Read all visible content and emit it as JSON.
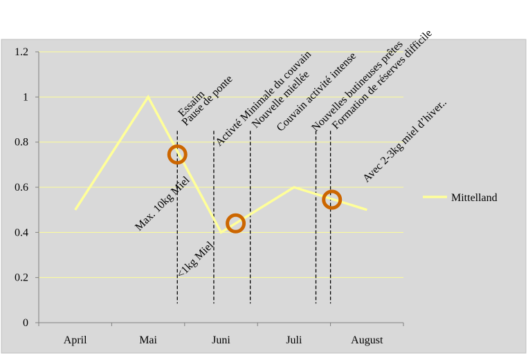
{
  "chart_data": {
    "type": "line",
    "categories": [
      "April",
      "Mai",
      "Juni",
      "Juli",
      "August"
    ],
    "series": [
      {
        "name": "Mittelland",
        "color": "#ffff99",
        "points": [
          {
            "x": 0.0,
            "y": 0.5
          },
          {
            "x": 1.0,
            "y": 1.0
          },
          {
            "x": 2.0,
            "y": 0.4
          },
          {
            "x": 3.0,
            "y": 0.6
          },
          {
            "x": 4.0,
            "y": 0.5
          }
        ]
      }
    ],
    "ylim": [
      0,
      1.2
    ],
    "yticks": [
      0,
      0.2,
      0.4,
      0.6,
      0.8,
      1,
      1.2
    ],
    "ytick_labels": [
      "0",
      "0.2",
      "0.4",
      "0.6",
      "0.8",
      "1",
      "1.2"
    ],
    "grid": true,
    "legend_position": "right",
    "colors": {
      "plot_background": "#d9d9d9",
      "gridline": "#ffff99",
      "marker": "#cc6600"
    },
    "event_lines": [
      {
        "x": 1.4,
        "y_top": 0.85
      },
      {
        "x": 1.9,
        "y_top": 0.85
      },
      {
        "x": 2.4,
        "y_top": 0.85
      },
      {
        "x": 3.3,
        "y_top": 0.85
      },
      {
        "x": 3.5,
        "y_top": 0.85
      }
    ],
    "markers": [
      {
        "x": 1.4,
        "y": 0.745
      },
      {
        "x": 2.2,
        "y": 0.44
      },
      {
        "x": 3.52,
        "y": 0.545
      }
    ],
    "annotations": [
      {
        "text": "Essaim",
        "x": 1.47,
        "y": 0.91
      },
      {
        "text": "Pause de ponte",
        "x": 1.52,
        "y": 0.87
      },
      {
        "text": "Activté Minimale du couvain",
        "x": 1.98,
        "y": 0.78
      },
      {
        "text": "Nouvelle miellée",
        "x": 2.48,
        "y": 0.86
      },
      {
        "text": "Couvain activité intense",
        "x": 2.82,
        "y": 0.845
      },
      {
        "text": "Nouvelles butineuses prêtes",
        "x": 3.3,
        "y": 0.845
      },
      {
        "text": "Formation de réserves difficile",
        "x": 3.58,
        "y": 0.855
      },
      {
        "text": "Avec 2-3kg miel d’hiver..",
        "x": 4.0,
        "y": 0.62
      },
      {
        "text": "Max. 10kg Miel",
        "x": 0.88,
        "y": 0.405
      },
      {
        "text": "<1kg Miel",
        "x": 1.45,
        "y": 0.195
      }
    ]
  }
}
